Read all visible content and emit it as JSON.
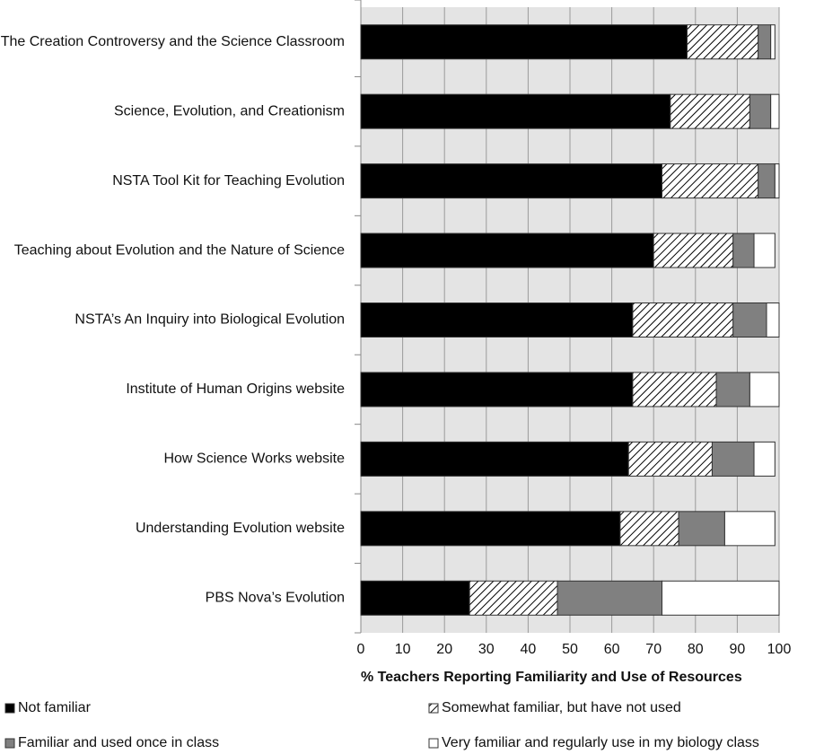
{
  "chart_data": {
    "type": "stacked-barh",
    "xlabel": "% Teachers Reporting Familiarity and Use of Resources",
    "categories": [
      "The Creation Controversy and the Science Classroom",
      "Science, Evolution, and Creationism",
      "NSTA Tool Kit for Teaching Evolution",
      "Teaching about Evolution and the Nature of Science",
      "NSTA’s An Inquiry into Biological Evolution",
      "Institute of Human Origins website",
      "How Science Works website",
      "Understanding Evolution website",
      "PBS Nova’s Evolution"
    ],
    "series": [
      {
        "name": "Not familiar",
        "color": "#000000",
        "values": [
          78,
          74,
          72,
          70,
          65,
          65,
          64,
          62,
          26
        ]
      },
      {
        "name": "Somewhat familiar, but have not used",
        "color": "#ffffff",
        "pattern": "hatch",
        "values": [
          17,
          19,
          23,
          19,
          24,
          20,
          20,
          14,
          21
        ]
      },
      {
        "name": "Familiar and used once in class",
        "color": "#808080",
        "values": [
          3,
          5,
          4,
          5,
          8,
          8,
          10,
          11,
          25
        ]
      },
      {
        "name": "Very familiar and regularly use in my biology class",
        "color": "#ffffff",
        "values": [
          1,
          2,
          1,
          5,
          3,
          7,
          5,
          12,
          28
        ]
      }
    ],
    "xlim": [
      0,
      100
    ],
    "xticks": [
      0,
      10,
      20,
      30,
      40,
      50,
      60,
      70,
      80,
      90,
      100
    ],
    "grid": true
  }
}
